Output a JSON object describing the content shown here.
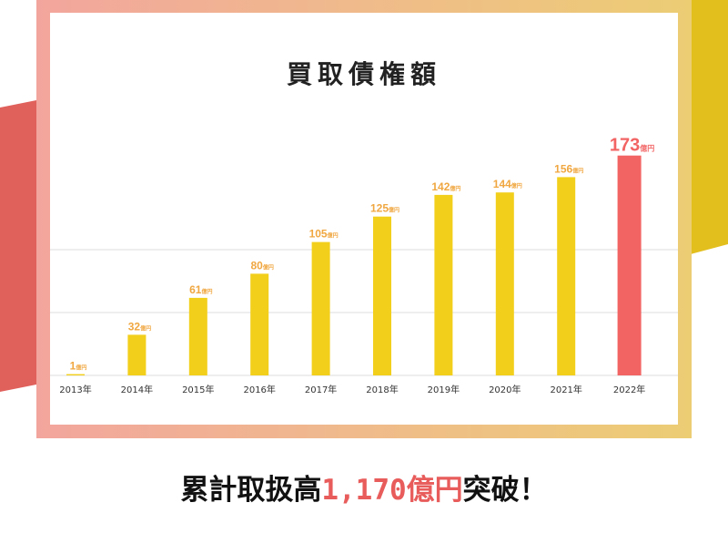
{
  "colors": {
    "bar": "#f2cf1b",
    "highlight_bar": "#f26464",
    "value_label": "#f0a741",
    "highlight_label": "#f26464",
    "grid": "#dddddd",
    "amount": "#e85c5c"
  },
  "chart_data": {
    "type": "bar",
    "title": "買取債権額",
    "categories": [
      "2013年",
      "2014年",
      "2015年",
      "2016年",
      "2017年",
      "2018年",
      "2019年",
      "2020年",
      "2021年",
      "2022年"
    ],
    "values": [
      1,
      32,
      61,
      80,
      105,
      125,
      142,
      144,
      156,
      173
    ],
    "value_unit": "億円",
    "highlight_index": 9,
    "ylim": [
      0,
      190
    ],
    "grid": true
  },
  "headline": {
    "prefix": "累計取扱高",
    "amount": "1,170億円",
    "suffix": "突破！"
  }
}
